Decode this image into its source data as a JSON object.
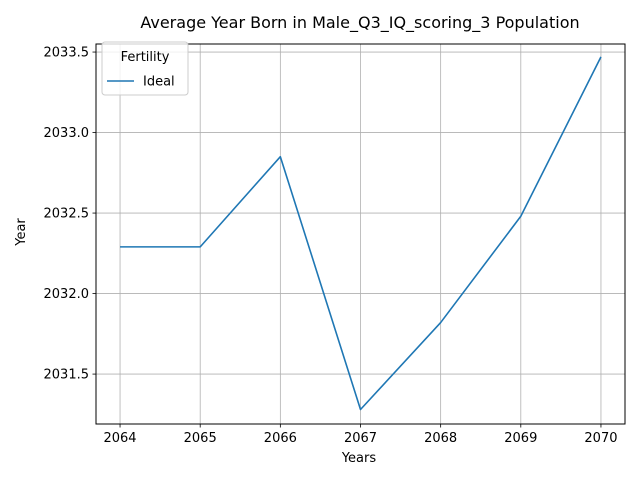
{
  "chart_data": {
    "type": "line",
    "title": "Average Year Born in Male_Q3_IQ_scoring_3 Population",
    "xlabel": "Years",
    "ylabel": "Year",
    "x": [
      2064,
      2065,
      2066,
      2067,
      2068,
      2069,
      2070
    ],
    "x_ticks": [
      "2064",
      "2065",
      "2066",
      "2067",
      "2068",
      "2069",
      "2070"
    ],
    "y_ticks": [
      "2031.5",
      "2032.0",
      "2032.5",
      "2033.0",
      "2033.5"
    ],
    "xlim": [
      2063.7,
      2070.3
    ],
    "ylim": [
      2031.19,
      2033.55
    ],
    "grid": true,
    "legend": {
      "title": "Fertility",
      "placement": "upper left"
    },
    "series": [
      {
        "name": "Ideal",
        "color": "#1f77b4",
        "values": [
          2032.29,
          2032.29,
          2032.85,
          2031.28,
          2031.82,
          2032.48,
          2033.47
        ]
      }
    ]
  }
}
